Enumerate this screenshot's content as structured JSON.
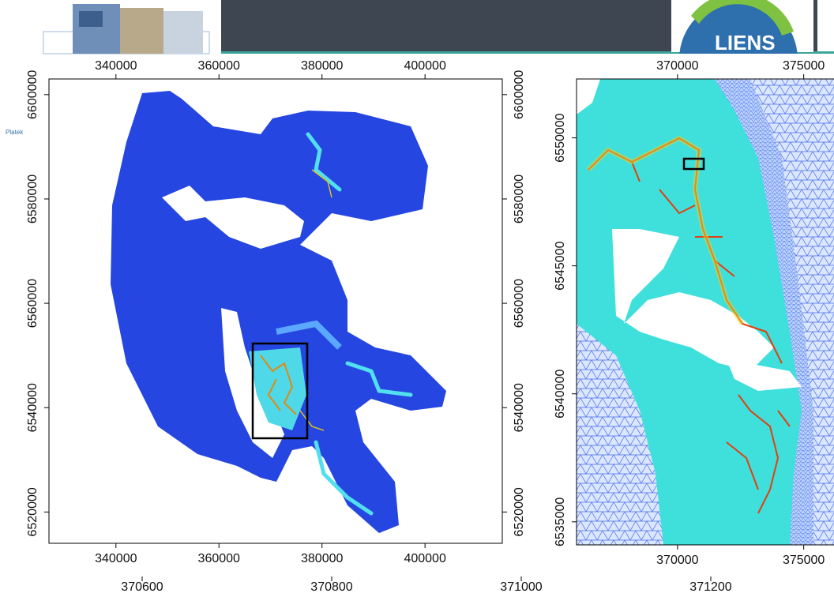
{
  "side_note": "Platek",
  "logo_text": "LIENS",
  "left_map": {
    "xlim": [
      327000,
      415000
    ],
    "ylim": [
      6514000,
      6603000
    ],
    "xticks": [
      340000,
      360000,
      380000,
      400000
    ],
    "yticks": [
      6520000,
      6540000,
      6560000,
      6580000,
      6600000
    ]
  },
  "right_map": {
    "xlim": [
      366000,
      376200
    ],
    "ylim": [
      6534100,
      6552300
    ],
    "xticks": [
      370000,
      375000
    ],
    "yticks": [
      6535000,
      6540000,
      6545000,
      6550000
    ]
  },
  "lower_map": {
    "xlim": [
      370450,
      371330
    ],
    "xticks": [
      370600,
      370800,
      371000,
      371200
    ]
  }
}
